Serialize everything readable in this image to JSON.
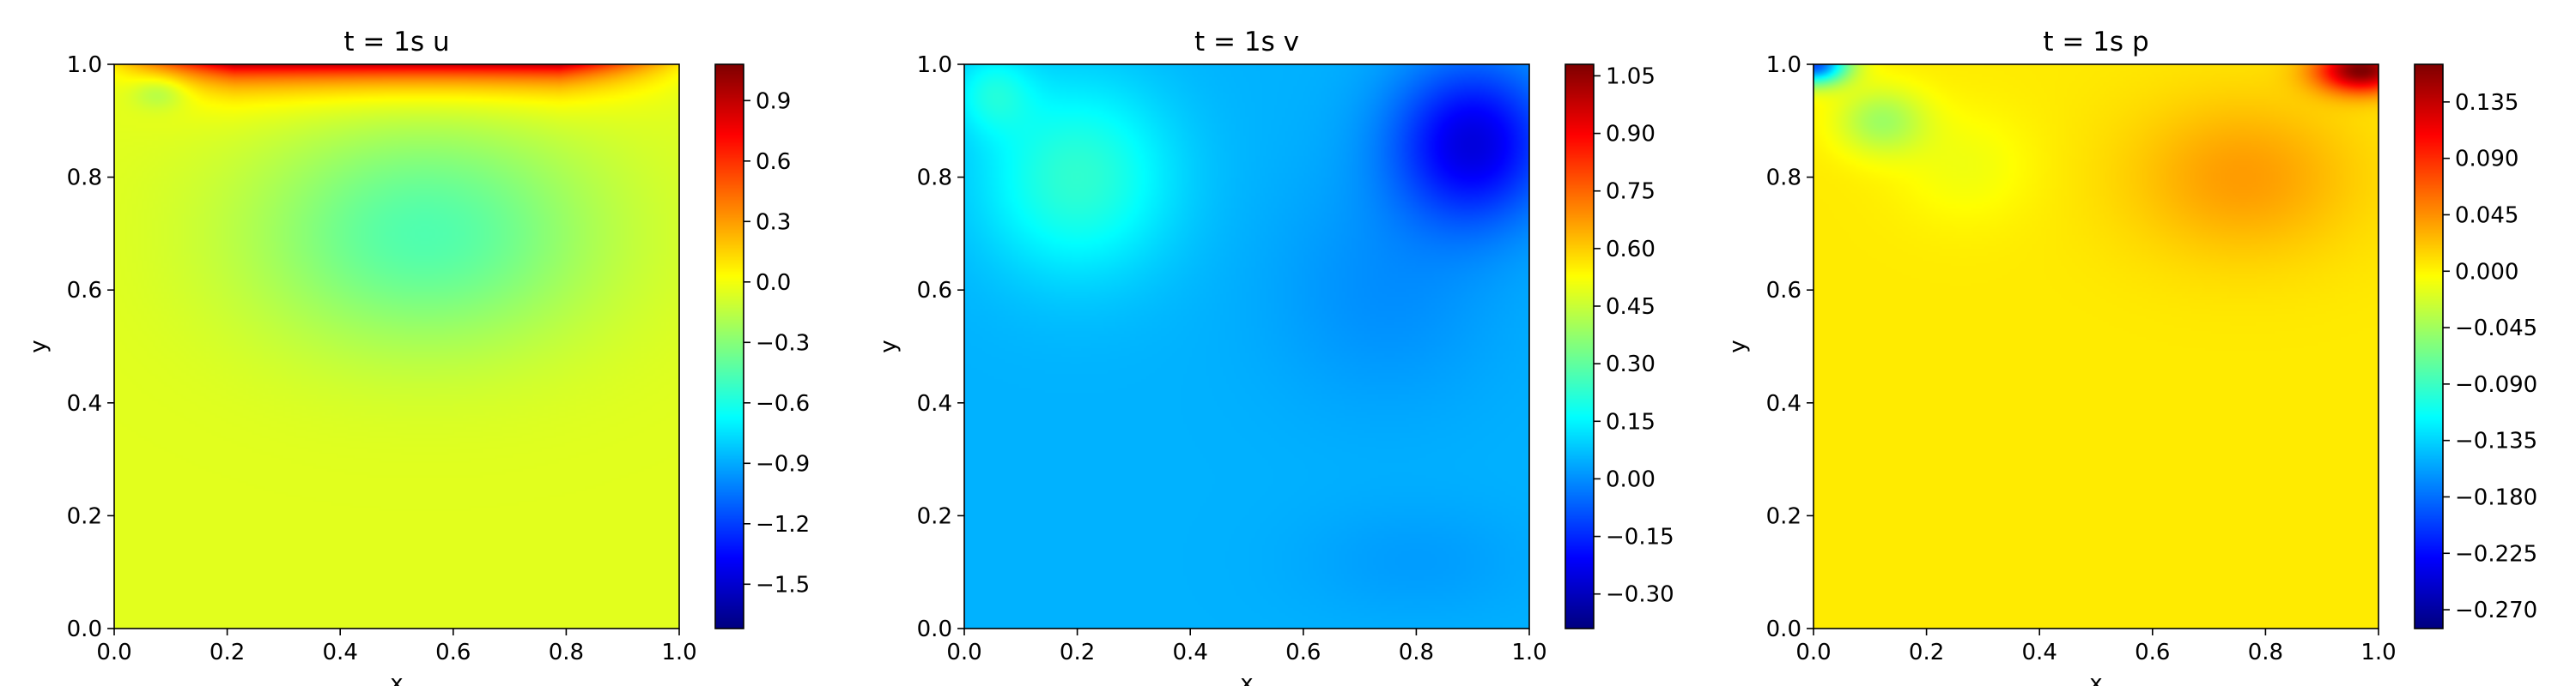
{
  "chart_data": [
    {
      "type": "heatmap",
      "title": "t = 1s u",
      "xlabel": "x",
      "ylabel": "y",
      "xlim": [
        0.0,
        1.0
      ],
      "ylim": [
        0.0,
        1.0
      ],
      "x_ticks": [
        "0.0",
        "0.2",
        "0.4",
        "0.6",
        "0.8",
        "1.0"
      ],
      "y_ticks": [
        "0.0",
        "0.2",
        "0.4",
        "0.6",
        "0.8",
        "1.0"
      ],
      "colormap": "jet",
      "colorbar_range": [
        -1.72,
        1.08
      ],
      "colorbar_ticks": [
        {
          "value": -1.5,
          "label": "−1.5"
        },
        {
          "value": -1.2,
          "label": "−1.2"
        },
        {
          "value": -0.9,
          "label": "−0.9"
        },
        {
          "value": -0.6,
          "label": "−0.6"
        },
        {
          "value": -0.3,
          "label": "−0.3"
        },
        {
          "value": 0.0,
          "label": "0.0"
        },
        {
          "value": 0.3,
          "label": "0.3"
        },
        {
          "value": 0.6,
          "label": "0.6"
        },
        {
          "value": 0.9,
          "label": "0.9"
        }
      ],
      "field": {
        "background": -0.05,
        "features": [
          {
            "kind": "top_band",
            "peak": 1.0,
            "depth": 0.035,
            "side_fade": 0.25
          },
          {
            "kind": "blob",
            "x": 0.55,
            "y": 0.7,
            "sx": 0.3,
            "sy": 0.2,
            "value": -0.4
          },
          {
            "kind": "blob",
            "x": 0.08,
            "y": 0.95,
            "sx": 0.05,
            "sy": 0.03,
            "value": -0.2
          }
        ]
      }
    },
    {
      "type": "heatmap",
      "title": "t = 1s v",
      "xlabel": "x",
      "ylabel": "y",
      "xlim": [
        0.0,
        1.0
      ],
      "ylim": [
        0.0,
        1.0
      ],
      "x_ticks": [
        "0.0",
        "0.2",
        "0.4",
        "0.6",
        "0.8",
        "1.0"
      ],
      "y_ticks": [
        "0.0",
        "0.2",
        "0.4",
        "0.6",
        "0.8",
        "1.0"
      ],
      "colormap": "jet",
      "colorbar_range": [
        -0.39,
        1.08
      ],
      "colorbar_ticks": [
        {
          "value": -0.3,
          "label": "−0.30"
        },
        {
          "value": -0.15,
          "label": "−0.15"
        },
        {
          "value": 0.0,
          "label": "0.00"
        },
        {
          "value": 0.15,
          "label": "0.15"
        },
        {
          "value": 0.3,
          "label": "0.30"
        },
        {
          "value": 0.45,
          "label": "0.45"
        },
        {
          "value": 0.6,
          "label": "0.60"
        },
        {
          "value": 0.75,
          "label": "0.75"
        },
        {
          "value": 0.9,
          "label": "0.90"
        },
        {
          "value": 1.05,
          "label": "1.05"
        }
      ],
      "field": {
        "background": 0.05,
        "features": [
          {
            "kind": "blob",
            "x": 0.2,
            "y": 0.8,
            "sx": 0.17,
            "sy": 0.17,
            "value": 0.18
          },
          {
            "kind": "blob",
            "x": 0.05,
            "y": 0.95,
            "sx": 0.07,
            "sy": 0.07,
            "value": 0.12
          },
          {
            "kind": "blob",
            "x": 0.9,
            "y": 0.86,
            "sx": 0.14,
            "sy": 0.14,
            "value": -0.3
          },
          {
            "kind": "blob",
            "x": 0.75,
            "y": 0.6,
            "sx": 0.2,
            "sy": 0.2,
            "value": -0.05
          },
          {
            "kind": "blob",
            "x": 0.8,
            "y": 0.12,
            "sx": 0.2,
            "sy": 0.1,
            "value": -0.03
          }
        ]
      }
    },
    {
      "type": "heatmap",
      "title": "t = 1s p",
      "xlabel": "x",
      "ylabel": "y",
      "xlim": [
        0.0,
        1.0
      ],
      "ylim": [
        0.0,
        1.0
      ],
      "x_ticks": [
        "0.0",
        "0.2",
        "0.4",
        "0.6",
        "0.8",
        "1.0"
      ],
      "y_ticks": [
        "0.0",
        "0.2",
        "0.4",
        "0.6",
        "0.8",
        "1.0"
      ],
      "colormap": "jet",
      "colorbar_range": [
        -0.285,
        0.165
      ],
      "colorbar_ticks": [
        {
          "value": -0.27,
          "label": "−0.270"
        },
        {
          "value": -0.225,
          "label": "−0.225"
        },
        {
          "value": -0.18,
          "label": "−0.180"
        },
        {
          "value": -0.135,
          "label": "−0.135"
        },
        {
          "value": -0.09,
          "label": "−0.090"
        },
        {
          "value": -0.045,
          "label": "−0.045"
        },
        {
          "value": 0.0,
          "label": "0.000"
        },
        {
          "value": 0.045,
          "label": "0.045"
        },
        {
          "value": 0.09,
          "label": "0.090"
        },
        {
          "value": 0.135,
          "label": "0.135"
        }
      ],
      "field": {
        "background": 0.005,
        "features": [
          {
            "kind": "blob",
            "x": 0.0,
            "y": 1.0,
            "sx": 0.06,
            "sy": 0.035,
            "value": -0.2
          },
          {
            "kind": "blob",
            "x": 0.12,
            "y": 0.9,
            "sx": 0.08,
            "sy": 0.06,
            "value": -0.05
          },
          {
            "kind": "blob",
            "x": 0.27,
            "y": 0.82,
            "sx": 0.12,
            "sy": 0.1,
            "value": -0.015
          },
          {
            "kind": "blob",
            "x": 0.97,
            "y": 0.99,
            "sx": 0.08,
            "sy": 0.04,
            "value": 0.16
          },
          {
            "kind": "blob",
            "x": 0.76,
            "y": 0.8,
            "sx": 0.2,
            "sy": 0.14,
            "value": 0.035
          }
        ]
      }
    }
  ]
}
